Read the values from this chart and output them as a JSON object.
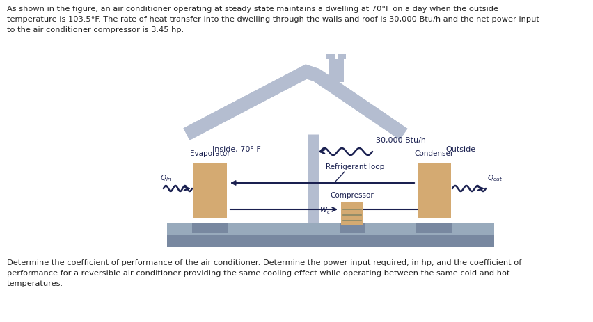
{
  "top_text": "As shown in the figure, an air conditioner operating at steady state maintains a dwelling at 70°F on a day when the outside\ntemperature is 103.5°F. The rate of heat transfer into the dwelling through the walls and roof is 30,000 Btu/h and the net power input\nto the air conditioner compressor is 3.45 hp.",
  "bottom_text": "Determine the coefficient of performance of the air conditioner. Determine the power input required, in hp, and the coefficient of\nperformance for a reversible air conditioner providing the same cooling effect while operating between the same cold and hot\ntemperatures.",
  "inside_label": "Inside, 70° F",
  "outside_label": "Outside",
  "heat_label": "30,000 Btu/h",
  "evaporator_label": "Evaporator",
  "condenser_label": "Condenser",
  "compressor_label": "Compressor",
  "refrigerant_label": "Refrigerant loop",
  "house_color": "#b4bdd0",
  "component_color": "#d4aa72",
  "ground_dark": "#8090a0",
  "ground_light": "#9aaabb",
  "text_color": "#1a2050",
  "arrow_color": "#1a2050",
  "background": "#ffffff",
  "fig_width": 8.52,
  "fig_height": 4.63,
  "dpi": 100
}
